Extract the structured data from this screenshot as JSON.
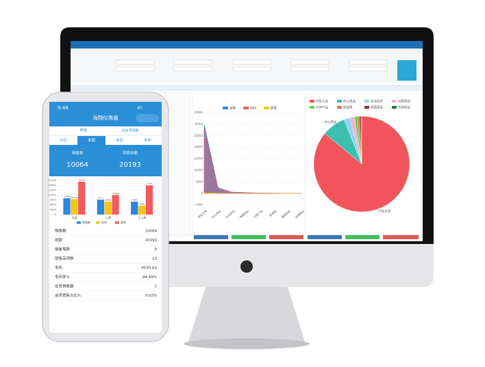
{
  "phone": {
    "status": {
      "time": "9:48",
      "network": "4G"
    },
    "title": "海翔仪表盘",
    "filter": {
      "label": "所有",
      "hint": "点击可切换"
    },
    "tabs": [
      "今日",
      "本周",
      "本月",
      "本年"
    ],
    "kpis": [
      {
        "label": "销售额",
        "value": "10064"
      },
      {
        "label": "收款金额",
        "value": "20193"
      }
    ],
    "table": {
      "rows": [
        [
          "销售额",
          "10064"
        ],
        [
          "收款",
          "20193"
        ],
        [
          "销售笔数",
          "9"
        ],
        [
          "销售品项数",
          "13"
        ],
        [
          "毛利",
          "9530.62"
        ],
        [
          "毛利率%",
          "94.69%"
        ],
        [
          "会员销售额",
          "3"
        ],
        [
          "会员销售占比%",
          "0.03%"
        ]
      ]
    }
  },
  "chart_data": [
    {
      "type": "bar",
      "categories": [
        "本周",
        "上周",
        "上上周"
      ],
      "series": [
        {
          "name": "销售额",
          "color": "#2e86de",
          "values": [
            10064,
            9171,
            7964
          ]
        },
        {
          "name": "毛利",
          "color": "#f5c518",
          "values": [
            9530.62,
            8000,
            5400
          ]
        },
        {
          "name": "收款",
          "color": "#f25c5c",
          "values": [
            20193,
            12000,
            17961
          ]
        }
      ],
      "ylim": [
        0,
        21000
      ],
      "yticks": [
        0,
        3000,
        6000,
        9000,
        12000,
        15000,
        18000,
        21000
      ],
      "grid": true
    },
    {
      "type": "area",
      "categories": [
        "学生文具",
        "办公用品",
        "生活百货",
        "电器商品",
        "文体产品",
        "配送费",
        "桌面用品",
        "品牌周边"
      ],
      "series": [
        {
          "name": "金额",
          "color": "#2e86de",
          "values": [
            30000,
            2500,
            600,
            400,
            200,
            150,
            100,
            50
          ]
        },
        {
          "name": "毛利",
          "color": "#f25c5c",
          "values": [
            28000,
            2300,
            550,
            350,
            180,
            130,
            90,
            40
          ]
        },
        {
          "name": "数量",
          "color": "#f5c518",
          "values": [
            300,
            60,
            20,
            15,
            10,
            5,
            5,
            2
          ]
        }
      ],
      "ylim": [
        -5000,
        35000
      ],
      "yticks": [
        -5000,
        0,
        5000,
        10000,
        15000,
        20000,
        25000,
        30000,
        35000
      ],
      "grid": true
    },
    {
      "type": "pie",
      "categories": [
        "学生文具",
        "办公用品",
        "生活百货",
        "创意周边",
        "文体产品",
        "配送费",
        "桌面用品",
        "代购周边"
      ],
      "values": [
        86,
        8,
        2,
        1.5,
        1,
        0.8,
        0.5,
        0.2
      ],
      "colors": [
        "#f2545b",
        "#3cbfae",
        "#8fd3f4",
        "#f7b2c9",
        "#5cd65c",
        "#e8733a",
        "#8b2e2e",
        "#1e7a3e"
      ]
    }
  ]
}
